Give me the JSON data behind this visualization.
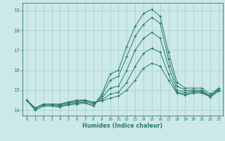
{
  "title": "",
  "xlabel": "Humidex (Indice chaleur)",
  "xlim": [
    -0.5,
    23.5
  ],
  "ylim": [
    13.72,
    19.38
  ],
  "yticks": [
    14,
    15,
    16,
    17,
    18,
    19
  ],
  "xticks": [
    0,
    1,
    2,
    3,
    4,
    5,
    6,
    7,
    8,
    9,
    10,
    11,
    12,
    13,
    14,
    15,
    16,
    17,
    18,
    19,
    20,
    21,
    22,
    23
  ],
  "bg_color": "#cde8e8",
  "line_color": "#2a7a6e",
  "grid_color": "#9fcece",
  "series": [
    [
      14.5,
      14.0,
      14.2,
      14.2,
      14.15,
      14.25,
      14.3,
      14.35,
      14.2,
      14.8,
      15.8,
      16.0,
      17.2,
      18.2,
      18.85,
      19.05,
      18.7,
      16.9,
      15.4,
      15.1,
      15.1,
      15.1,
      14.8,
      15.1
    ],
    [
      14.5,
      14.0,
      14.2,
      14.2,
      14.2,
      14.3,
      14.35,
      14.4,
      14.2,
      14.7,
      15.5,
      15.7,
      16.7,
      17.7,
      18.3,
      18.65,
      18.35,
      16.55,
      15.2,
      15.0,
      15.0,
      15.0,
      14.7,
      15.05
    ],
    [
      14.5,
      14.1,
      14.25,
      14.25,
      14.25,
      14.35,
      14.4,
      14.45,
      14.3,
      14.6,
      15.1,
      15.2,
      16.0,
      17.0,
      17.6,
      17.9,
      17.6,
      16.2,
      15.0,
      14.9,
      14.95,
      14.95,
      14.7,
      15.0
    ],
    [
      14.5,
      14.1,
      14.3,
      14.3,
      14.3,
      14.4,
      14.45,
      14.5,
      14.35,
      14.5,
      14.8,
      14.9,
      15.4,
      16.2,
      16.85,
      17.1,
      16.9,
      15.8,
      14.9,
      14.8,
      14.9,
      14.9,
      14.7,
      15.0
    ],
    [
      14.5,
      14.1,
      14.3,
      14.3,
      14.3,
      14.4,
      14.5,
      14.5,
      14.4,
      14.45,
      14.6,
      14.7,
      15.0,
      15.5,
      16.1,
      16.35,
      16.2,
      15.5,
      14.85,
      14.75,
      14.85,
      14.85,
      14.65,
      14.95
    ]
  ]
}
